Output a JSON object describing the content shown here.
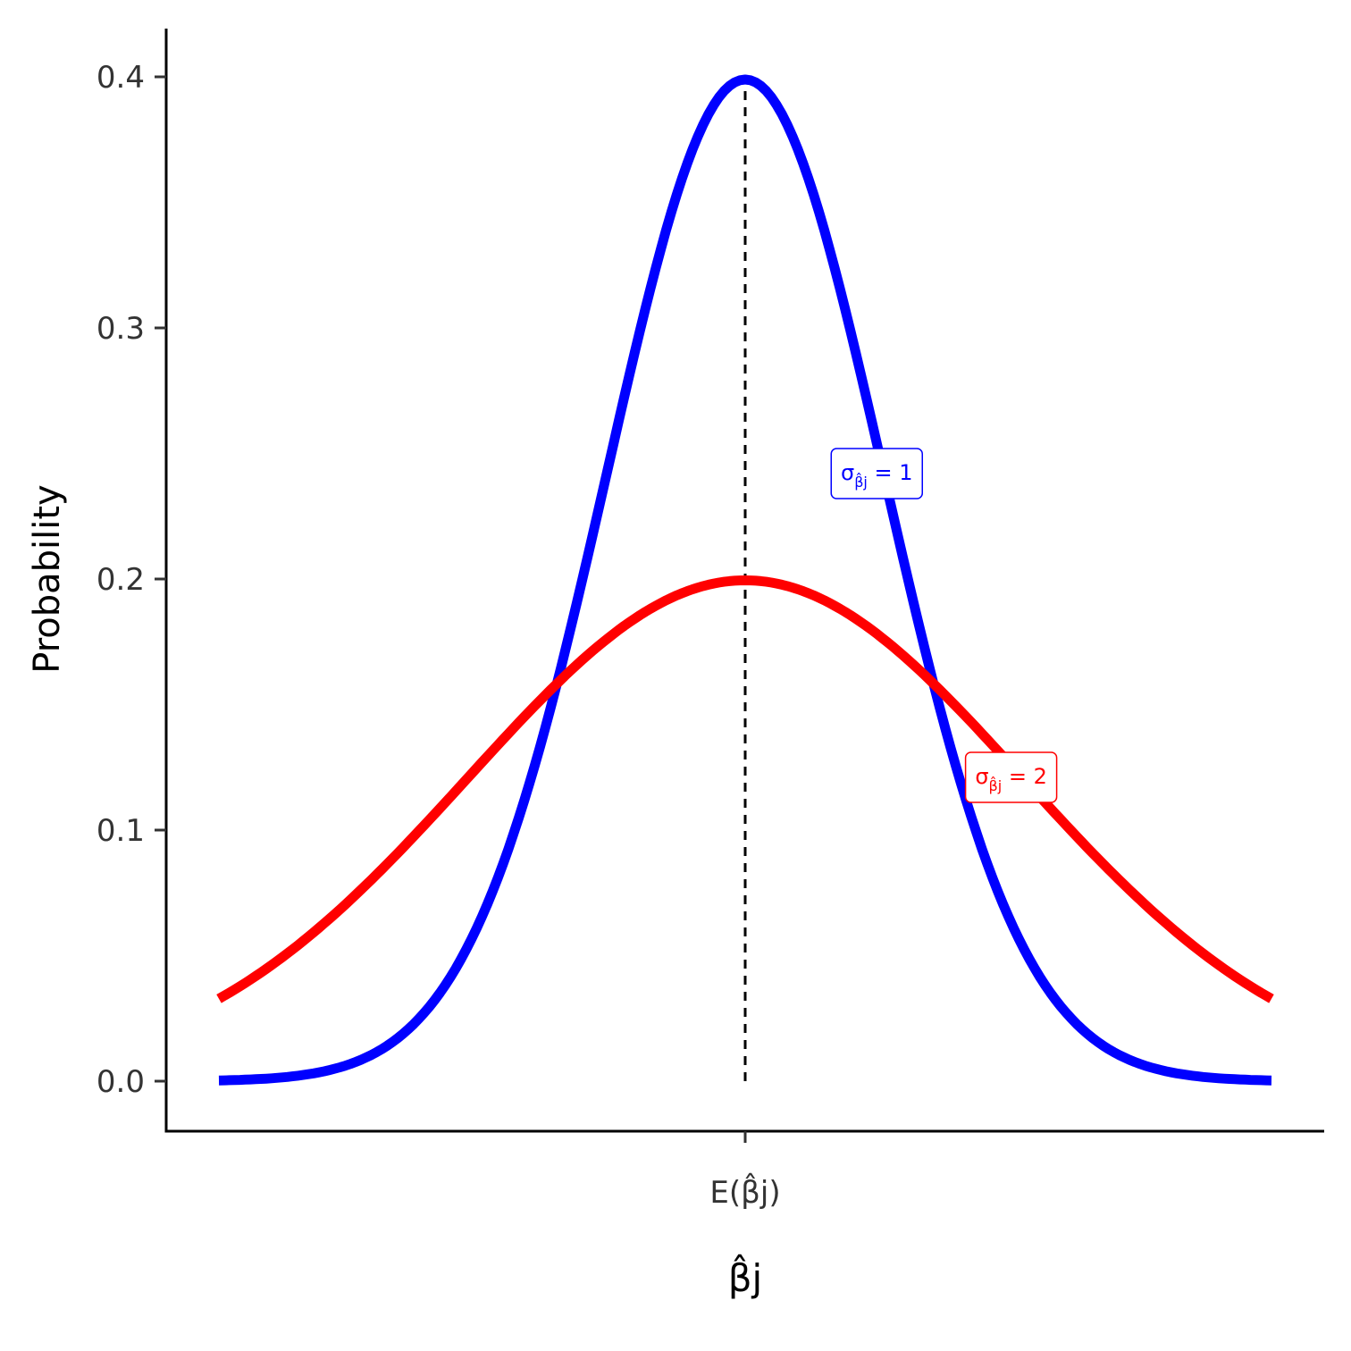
{
  "chart_data": {
    "type": "line",
    "xlabel": "β̂j",
    "ylabel": "Probability",
    "xlim": [
      -4.2,
      5.0
    ],
    "ylim": [
      -0.02,
      0.42
    ],
    "x_ticks": [
      {
        "value": 0,
        "label": "E(β̂j)"
      }
    ],
    "y_ticks": [
      {
        "value": 0.0,
        "label": "0.0"
      },
      {
        "value": 0.1,
        "label": "0.1"
      },
      {
        "value": 0.2,
        "label": "0.2"
      },
      {
        "value": 0.3,
        "label": "0.3"
      },
      {
        "value": 0.4,
        "label": "0.4"
      }
    ],
    "grid": false,
    "x_range": [
      -3.8,
      3.8
    ],
    "series": [
      {
        "key": "sd1",
        "distribution": "normal",
        "mean": 0,
        "sd": 1,
        "color": "#0000ff"
      },
      {
        "key": "sd2",
        "distribution": "normal",
        "mean": 0,
        "sd": 2,
        "color": "#ff0000"
      }
    ],
    "reference_line": {
      "x": 0,
      "style": "dashed",
      "color": "#000000"
    },
    "annotations": [
      {
        "key": "ann-sd1",
        "text_sigma": "σ",
        "text_sub": "β̂j",
        "text_rest": " = 1",
        "x": 0.95,
        "y": 0.242,
        "color": "#0000ff"
      },
      {
        "key": "ann-sd2",
        "text_sigma": "σ",
        "text_sub": "β̂j",
        "text_rest": " = 2",
        "x": 1.92,
        "y": 0.121,
        "color": "#ff0000"
      }
    ]
  }
}
